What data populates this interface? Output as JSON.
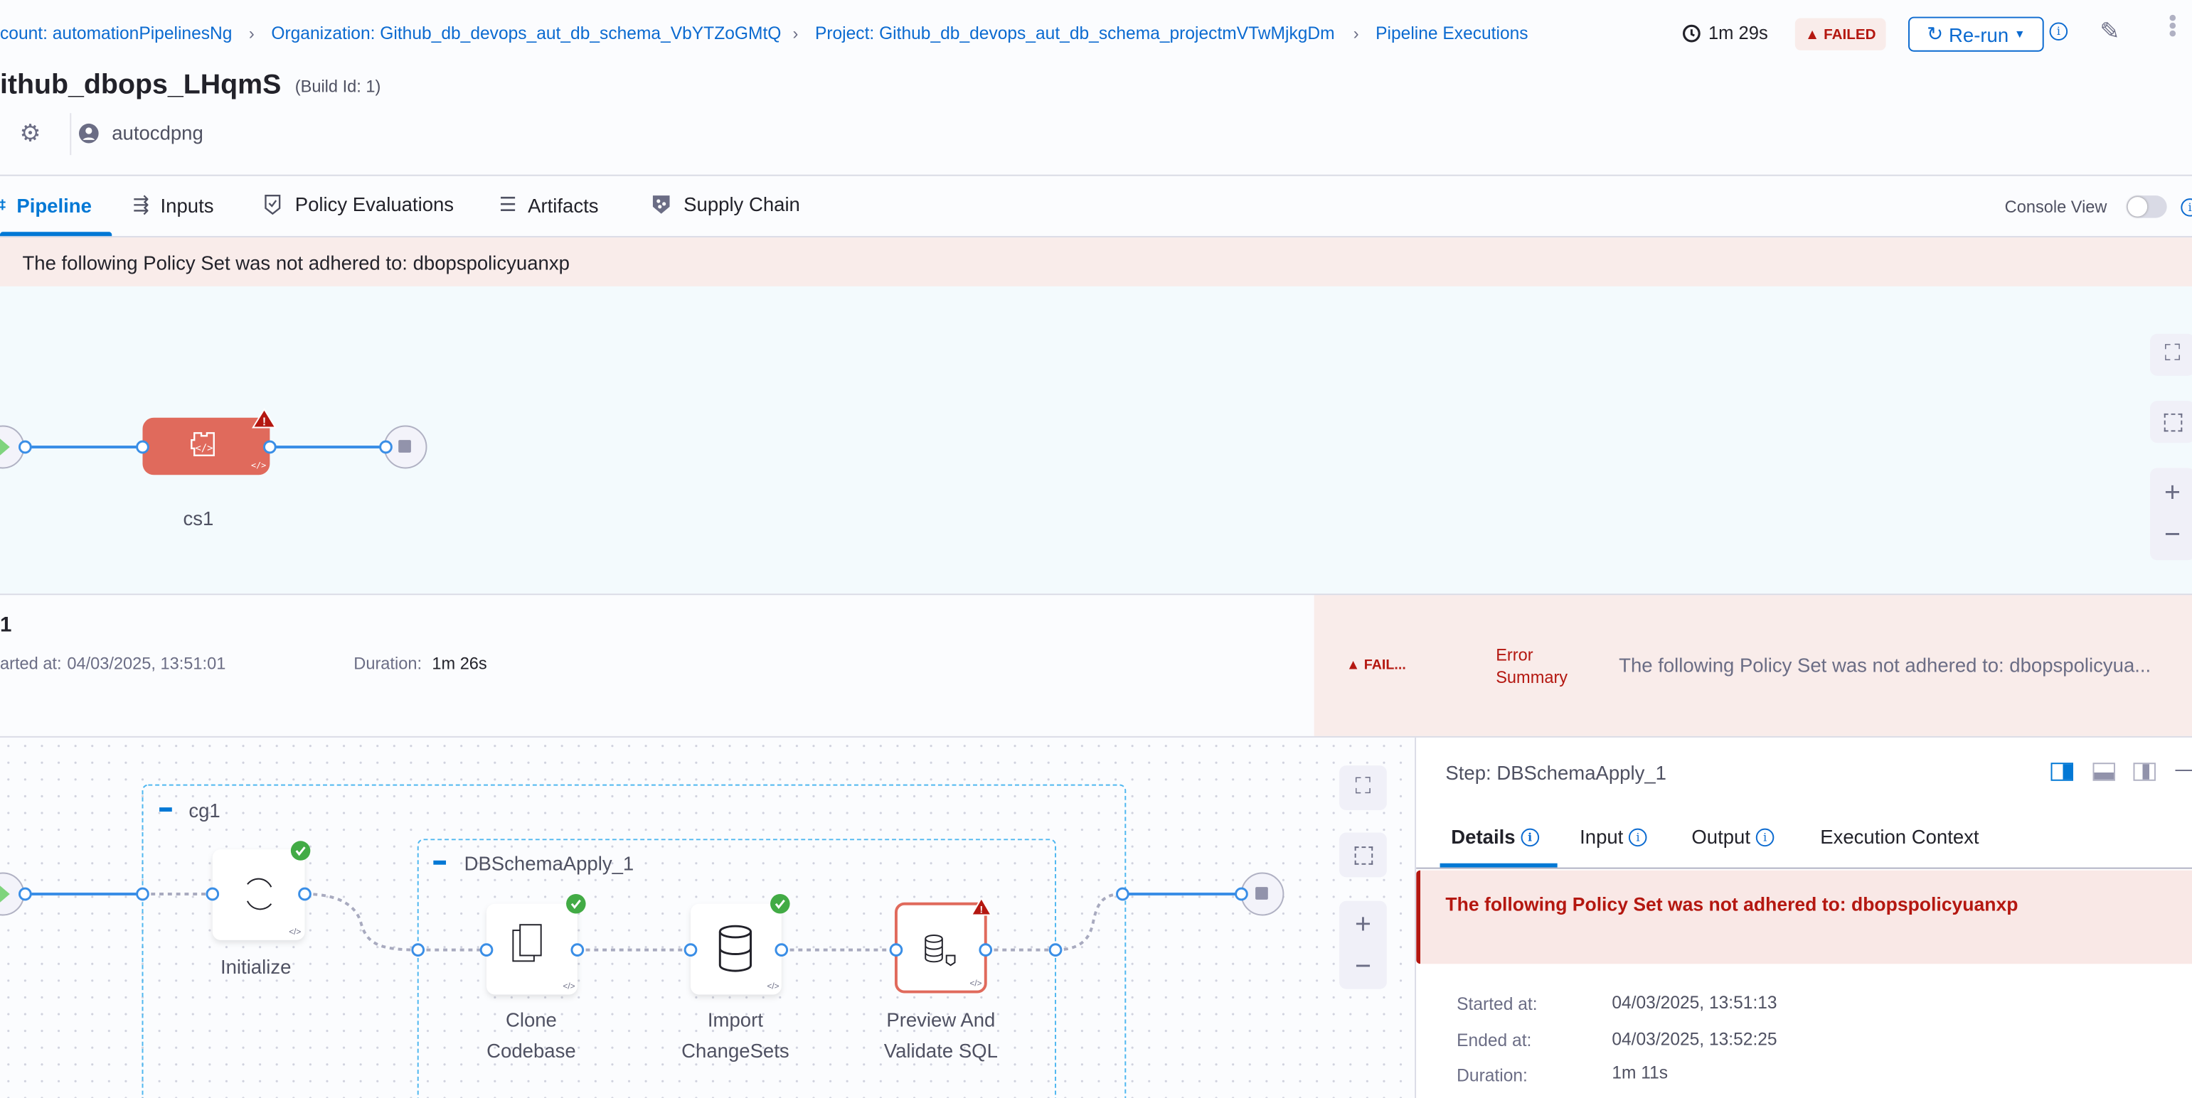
{
  "header": {
    "breadcrumbs": [
      "count: automationPipelinesNg",
      "Organization: Github_db_devops_aut_db_schema_VbYTZoGMtQ",
      "Project: Github_db_devops_aut_db_schema_projectmVTwMjkgDm",
      "Pipeline Executions"
    ],
    "title": "ithub_dbops_LHqmS",
    "build_id": "(Build Id: 1)",
    "user": "autocdpng",
    "duration": "1m 29s",
    "status": "FAILED",
    "rerun_label": "Re-run"
  },
  "tabs": [
    {
      "label": "Pipeline",
      "active": true
    },
    {
      "label": "Inputs"
    },
    {
      "label": "Policy Evaluations"
    },
    {
      "label": "Artifacts"
    },
    {
      "label": "Supply Chain"
    }
  ],
  "console_view": {
    "label": "Console View",
    "enabled": false
  },
  "policy_banner": "The following Policy Set was not adhered to: dbopspolicyuanxp",
  "stage_graph": {
    "stage": {
      "name": "cs1",
      "status": "failed"
    }
  },
  "stage_info": {
    "name": "1",
    "started_label": "arted at:",
    "started_value": "04/03/2025, 13:51:01",
    "duration_label": "Duration:",
    "duration_value": "1m 26s",
    "status": "FAIL...",
    "error_label": "Error Summary",
    "error_message": "The following Policy Set was not adhered to: dbopspolicyua..."
  },
  "step_graph": {
    "group": "cg1",
    "step_group": "DBSchemaApply_1",
    "steps": [
      {
        "name": "Initialize",
        "status": "success"
      },
      {
        "name": "Clone Codebase",
        "status": "success"
      },
      {
        "name": "Import ChangeSets",
        "status": "success"
      },
      {
        "name": "Preview And Validate SQL",
        "status": "failed"
      }
    ]
  },
  "step_panel": {
    "title": "Step: DBSchemaApply_1",
    "tabs": [
      "Details",
      "Input",
      "Output",
      "Execution Context"
    ],
    "active_tab": "Details",
    "error": "The following Policy Set was not adhered to: dbopspolicyuanxp",
    "details": [
      {
        "label": "Started at:",
        "value": "04/03/2025, 13:51:13"
      },
      {
        "label": "Ended at:",
        "value": "04/03/2025, 13:52:25"
      },
      {
        "label": "Duration:",
        "value": "1m 11s"
      }
    ]
  },
  "colors": {
    "accent": "#0278d5",
    "error": "#b41710",
    "error_bg": "#f9ecea",
    "success": "#42ab45",
    "failed_node": "#e06a5c"
  }
}
